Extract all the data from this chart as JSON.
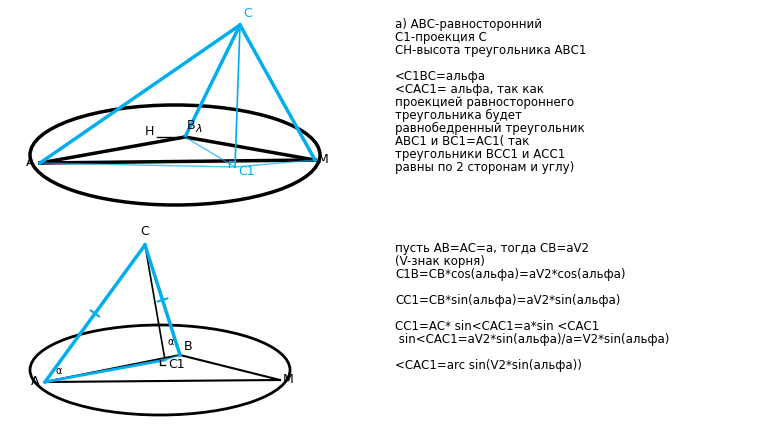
{
  "text_right_top": [
    "а) АВС-равносторонний",
    "С1-проекция С",
    "СН-высота треугольника АВС1",
    "",
    "<С1ВС=альфа",
    "<САС1= альфа, так как",
    "проекцией равностороннего",
    "треугольника будет",
    "равнобедренный треугольник",
    "АВС1 и ВС1=АС1( так",
    "треугольники ВСС1 и АСС1",
    "равны по 2 сторонам и углу)"
  ],
  "text_right_bottom": [
    "пусть АВ=АС=а, тогда СВ=аV2",
    "(V-знак корня)",
    "С1В=СВ*cos(альфа)=аV2*cos(альфа)",
    "",
    "СС1=СВ*sin(альфа)=аV2*sin(альфа)",
    "",
    "СС1=АС* sin<САС1=а*sin <САС1",
    " sin<САС1=аV2*sin(альфа)/а=V2*sin(альфа)",
    "",
    "<САС1=arc sin(V2*sin(альфа))"
  ],
  "cyan_color": "#00AEEF",
  "black_color": "#000000",
  "bg_color": "#FFFFFF"
}
